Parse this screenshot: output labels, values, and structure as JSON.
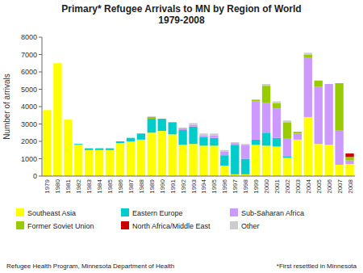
{
  "chart_data": {
    "type": "bar",
    "stacked": true,
    "title": "Primary* Refugee Arrivals to MN by Region of World\n1979-2008",
    "y_label": "Number of arrivals",
    "annotations": [
      "Refugee Health Program, Minnesota Department of Health",
      "*First resettled in Minnesota"
    ],
    "categories": [
      "1979",
      "1980",
      "1981",
      "1982",
      "1983",
      "1984",
      "1985",
      "1986",
      "1987",
      "1988",
      "1989",
      "1990",
      "1991",
      "1992",
      "1993",
      "1994",
      "1995",
      "1996",
      "1997",
      "1998",
      "1999",
      "2000",
      "2001",
      "2002",
      "2003",
      "2004",
      "2005",
      "2006",
      "2007",
      "2008"
    ],
    "series": [
      {
        "name": "Southeast Asia",
        "color": "#FFFF00",
        "values": [
          3800,
          6500,
          3250,
          1800,
          1500,
          1500,
          1500,
          1900,
          2000,
          2100,
          2500,
          2600,
          2400,
          1800,
          1850,
          1750,
          1750,
          600,
          100,
          100,
          1800,
          1750,
          1700,
          1050,
          2100,
          3400,
          1850,
          1800,
          650,
          700
        ]
      },
      {
        "name": "Eastern Europe",
        "color": "#00CCCC",
        "values": [
          0,
          0,
          0,
          50,
          100,
          100,
          100,
          100,
          200,
          350,
          800,
          700,
          700,
          850,
          1000,
          500,
          450,
          600,
          1700,
          900,
          300,
          750,
          500,
          100,
          0,
          0,
          0,
          0,
          0,
          0
        ]
      },
      {
        "name": "Sub-Saharan Africa",
        "color": "#CC99FF",
        "values": [
          0,
          0,
          0,
          0,
          0,
          0,
          0,
          0,
          0,
          0,
          0,
          0,
          0,
          100,
          100,
          100,
          150,
          200,
          100,
          800,
          2200,
          1700,
          1700,
          1000,
          350,
          3400,
          3300,
          3500,
          2000,
          200
        ]
      },
      {
        "name": "Former Soviet Union",
        "color": "#99CC00",
        "values": [
          0,
          0,
          0,
          0,
          0,
          0,
          0,
          0,
          0,
          0,
          100,
          0,
          0,
          0,
          0,
          0,
          0,
          0,
          0,
          0,
          100,
          1000,
          300,
          950,
          100,
          200,
          350,
          0,
          2700,
          200
        ]
      },
      {
        "name": "North Africa/Middle East",
        "color": "#CC0000",
        "values": [
          0,
          0,
          0,
          0,
          0,
          0,
          0,
          0,
          0,
          0,
          0,
          0,
          0,
          0,
          0,
          0,
          0,
          0,
          0,
          0,
          0,
          0,
          0,
          0,
          0,
          0,
          0,
          0,
          0,
          200
        ]
      },
      {
        "name": "Other",
        "color": "#CCCCCC",
        "values": [
          0,
          0,
          0,
          0,
          0,
          0,
          0,
          0,
          0,
          0,
          50,
          0,
          0,
          50,
          100,
          100,
          100,
          100,
          50,
          50,
          0,
          100,
          100,
          100,
          0,
          100,
          0,
          0,
          0,
          0
        ]
      }
    ],
    "ylim": [
      0,
      8000
    ],
    "yticks": [
      0,
      1000,
      2000,
      3000,
      4000,
      5000,
      6000,
      7000,
      8000
    ],
    "grid": false,
    "legend": "bottom"
  }
}
